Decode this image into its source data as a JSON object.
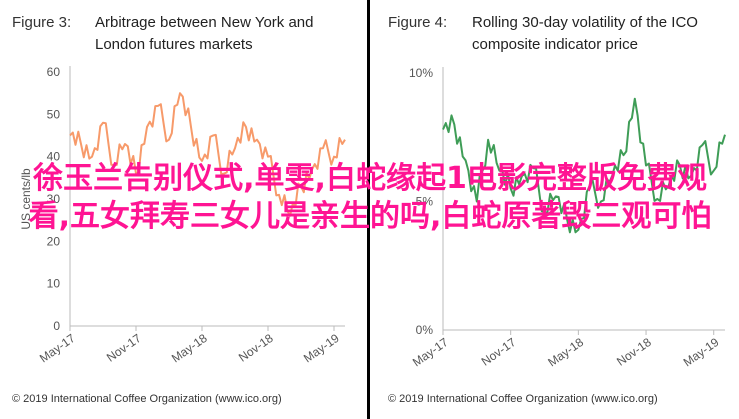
{
  "chart_data": [
    {
      "type": "line",
      "figure_label": "Figure 3:",
      "title_lines": [
        "Arbitrage between New York and",
        "London futures markets"
      ],
      "ylabel": "US cents/lb",
      "ylim": [
        0,
        60
      ],
      "yticks": [
        0,
        10,
        20,
        30,
        40,
        50,
        60
      ],
      "xlim": [
        "2017-05",
        "2019-06"
      ],
      "xticks": [
        "May-17",
        "Nov-17",
        "May-18",
        "Nov-18",
        "May-19"
      ],
      "color": "#f79a6a",
      "series": [
        {
          "x": [
            "2017-05",
            "2017-06",
            "2017-07",
            "2017-08",
            "2017-09",
            "2017-10",
            "2017-11",
            "2017-12",
            "2018-01",
            "2018-02",
            "2018-03",
            "2018-04",
            "2018-05",
            "2018-06",
            "2018-07",
            "2018-08",
            "2018-09",
            "2018-10",
            "2018-11",
            "2018-12",
            "2019-01",
            "2019-02",
            "2019-03",
            "2019-04",
            "2019-05",
            "2019-06"
          ],
          "values": [
            45,
            43,
            40,
            48,
            38,
            43,
            36,
            47,
            52,
            44,
            55,
            47,
            39,
            45,
            36,
            42,
            47,
            44,
            40,
            31,
            26,
            33,
            37,
            42,
            40,
            44
          ]
        }
      ]
    },
    {
      "type": "line",
      "figure_label": "Figure 4:",
      "title_lines": [
        "Rolling 30-day volatility of the ICO",
        "composite indicator price"
      ],
      "ylim": [
        0,
        10
      ],
      "yticks": [
        "0%",
        "5%",
        "10%"
      ],
      "ytick_values": [
        0,
        5,
        10
      ],
      "xlim": [
        "2017-05",
        "2019-06"
      ],
      "xticks": [
        "May-17",
        "Nov-17",
        "May-18",
        "Nov-18",
        "May-19"
      ],
      "color": "#3f9d57",
      "series": [
        {
          "x": [
            "2017-05",
            "2017-06",
            "2017-07",
            "2017-08",
            "2017-09",
            "2017-10",
            "2017-11",
            "2017-12",
            "2018-01",
            "2018-02",
            "2018-03",
            "2018-04",
            "2018-05",
            "2018-06",
            "2018-07",
            "2018-08",
            "2018-09",
            "2018-10",
            "2018-11",
            "2018-12",
            "2019-01",
            "2019-02",
            "2019-03",
            "2019-04",
            "2019-05",
            "2019-06"
          ],
          "values": [
            7.8,
            8.0,
            6.6,
            5.0,
            7.4,
            6.2,
            5.5,
            6.0,
            6.3,
            4.6,
            5.2,
            4.3,
            3.9,
            5.6,
            5.0,
            6.0,
            6.8,
            9.0,
            6.4,
            5.1,
            5.6,
            6.4,
            6.0,
            7.2,
            6.2,
            7.6
          ]
        }
      ]
    }
  ],
  "footer": "© 2019 International Coffee Organization (www.ico.org)",
  "overlay_text": "徐玉兰告别仪式,单雯,白蛇缘起1电影完整版免费观看,五女拜寿三女儿是亲生的吗,白蛇原著毁三观可怕"
}
